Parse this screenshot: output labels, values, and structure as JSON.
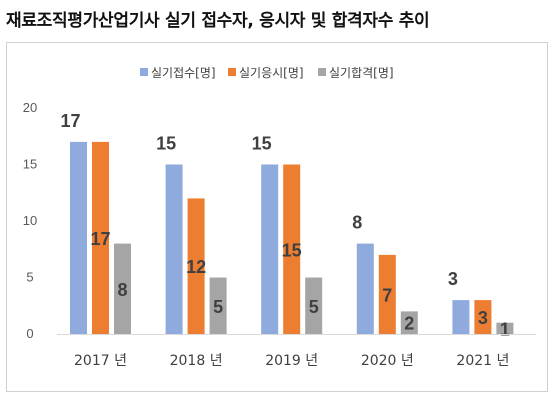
{
  "title": "재료조직평가산업기사 실기 접수자, 응시자 및 합격자수 추이",
  "chart_data": {
    "type": "bar",
    "categories": [
      "2017 년",
      "2018 년",
      "2019 년",
      "2020 년",
      "2021 년"
    ],
    "series": [
      {
        "name": "실기접수[명]",
        "color": "#8faadc",
        "values": [
          17,
          15,
          15,
          8,
          3
        ]
      },
      {
        "name": "실기응시[명]",
        "color": "#ed7d31",
        "values": [
          17,
          12,
          15,
          7,
          3
        ]
      },
      {
        "name": "실기합격[명]",
        "color": "#a5a5a5",
        "values": [
          8,
          5,
          5,
          2,
          1
        ]
      }
    ],
    "yticks": [
      0,
      5,
      10,
      15,
      20
    ],
    "ylim": [
      0,
      20
    ],
    "legend": "top-center",
    "grid": false
  }
}
